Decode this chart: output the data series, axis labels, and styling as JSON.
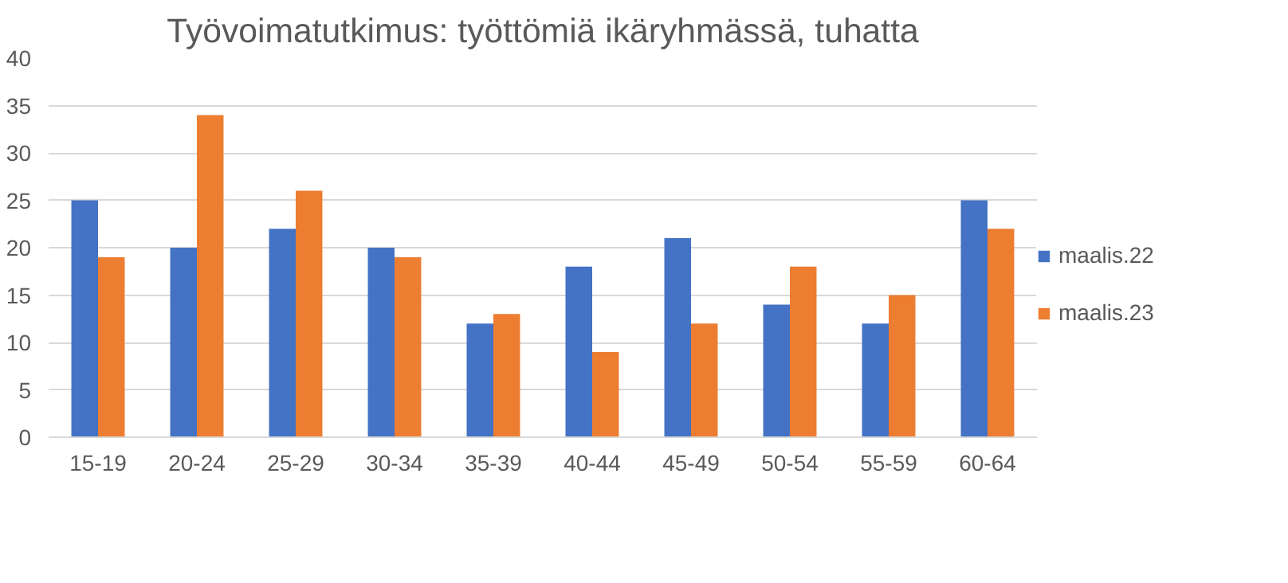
{
  "chart_data": {
    "type": "bar",
    "title": "Työvoimatutkimus: työttömiä ikäryhmässä, tuhatta",
    "categories": [
      "15-19",
      "20-24",
      "25-29",
      "30-34",
      "35-39",
      "40-44",
      "45-49",
      "50-54",
      "55-59",
      "60-64"
    ],
    "series": [
      {
        "name": "maalis.22",
        "color": "#4472c4",
        "values": [
          25,
          20,
          22,
          20,
          12,
          18,
          21,
          14,
          12,
          25
        ]
      },
      {
        "name": "maalis.23",
        "color": "#ed7d31",
        "values": [
          19,
          34,
          26,
          19,
          13,
          9,
          12,
          18,
          15,
          22
        ]
      }
    ],
    "ylim": [
      0,
      40
    ],
    "yticks": [
      0,
      5,
      10,
      15,
      20,
      25,
      30,
      35,
      40
    ],
    "grid": "y",
    "legend": "right"
  }
}
